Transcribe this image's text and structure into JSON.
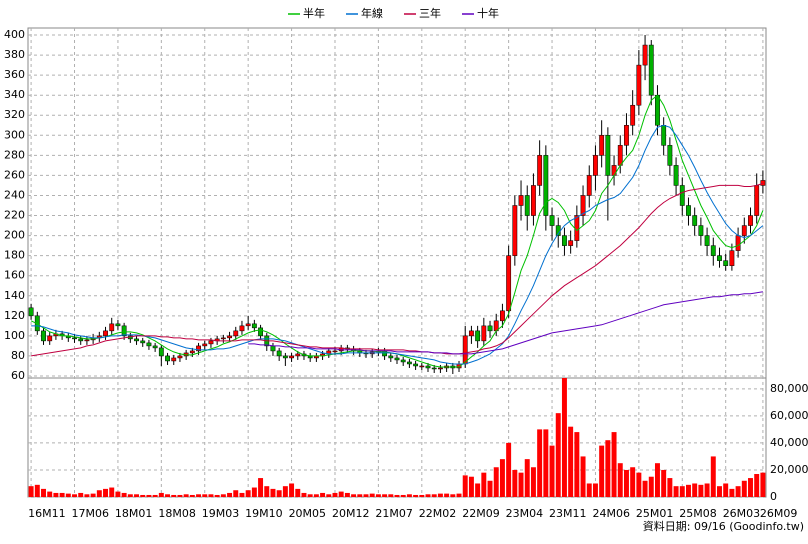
{
  "chart_data": [
    {
      "type": "candlestick",
      "legend": "top",
      "grid": true,
      "up_color": "#ff0000",
      "down_color": "#00b000",
      "source": "資料日期: 09/16 (Goodinfo.tw)",
      "categories": [
        "16M11",
        null,
        null,
        null,
        null,
        null,
        null,
        "17M06",
        null,
        null,
        null,
        null,
        null,
        null,
        "18M01",
        null,
        null,
        null,
        null,
        null,
        null,
        "18M08",
        null,
        null,
        null,
        null,
        null,
        null,
        "19M03",
        null,
        null,
        null,
        null,
        null,
        null,
        "19M10",
        null,
        null,
        null,
        null,
        null,
        null,
        "20M05",
        null,
        null,
        null,
        null,
        null,
        null,
        "20M12",
        null,
        null,
        null,
        null,
        null,
        null,
        "21M07",
        null,
        null,
        null,
        null,
        null,
        null,
        "22M02",
        null,
        null,
        null,
        null,
        null,
        null,
        "22M09",
        null,
        null,
        null,
        null,
        null,
        null,
        "23M04",
        null,
        null,
        null,
        null,
        null,
        null,
        "23M11",
        null,
        null,
        null,
        null,
        null,
        null,
        "24M06",
        null,
        null,
        null,
        null,
        null,
        null,
        "25M01",
        null,
        null,
        null,
        null,
        null,
        null,
        "25M08",
        null,
        null,
        null,
        null,
        null,
        null,
        "26M03",
        null,
        null,
        null,
        null,
        null,
        "26M09"
      ],
      "open": [
        128,
        120,
        105,
        95,
        100,
        102,
        100,
        98,
        97,
        95,
        96,
        98,
        100,
        105,
        112,
        110,
        100,
        97,
        95,
        93,
        90,
        88,
        80,
        75,
        78,
        80,
        83,
        85,
        90,
        92,
        95,
        97,
        98,
        100,
        105,
        110,
        112,
        108,
        100,
        90,
        85,
        80,
        78,
        80,
        82,
        80,
        78,
        80,
        82,
        85,
        85,
        88,
        87,
        85,
        83,
        82,
        84,
        85,
        80,
        78,
        76,
        74,
        72,
        70,
        70,
        68,
        67,
        68,
        70,
        68,
        72,
        100,
        105,
        95,
        110,
        105,
        115,
        125,
        180,
        230,
        240,
        220,
        250,
        280,
        220,
        210,
        200,
        190,
        195,
        220,
        240,
        260,
        280,
        300,
        260,
        270,
        290,
        310,
        330,
        370,
        390,
        340,
        310,
        290,
        270,
        250,
        230,
        220,
        210,
        200,
        190,
        180,
        175,
        170,
        185,
        200,
        210,
        220,
        250
      ],
      "high": [
        132,
        124,
        108,
        104,
        106,
        105,
        103,
        102,
        100,
        100,
        102,
        104,
        109,
        118,
        116,
        113,
        103,
        100,
        98,
        96,
        93,
        91,
        83,
        81,
        83,
        86,
        88,
        93,
        95,
        98,
        100,
        101,
        104,
        109,
        115,
        120,
        116,
        111,
        103,
        93,
        88,
        83,
        83,
        85,
        85,
        83,
        83,
        85,
        88,
        89,
        91,
        91,
        90,
        88,
        86,
        87,
        88,
        88,
        83,
        81,
        79,
        77,
        75,
        73,
        73,
        71,
        71,
        73,
        73,
        75,
        110,
        110,
        110,
        118,
        115,
        122,
        132,
        190,
        240,
        255,
        250,
        262,
        295,
        290,
        228,
        218,
        208,
        205,
        230,
        250,
        270,
        290,
        315,
        308,
        280,
        300,
        322,
        345,
        385,
        400,
        395,
        350,
        318,
        298,
        278,
        258,
        238,
        228,
        218,
        208,
        198,
        188,
        182,
        192,
        208,
        218,
        228,
        262,
        265
      ],
      "low": [
        116,
        101,
        91,
        91,
        96,
        96,
        94,
        93,
        91,
        91,
        92,
        94,
        96,
        101,
        106,
        96,
        93,
        91,
        89,
        86,
        84,
        70,
        71,
        71,
        74,
        76,
        79,
        81,
        86,
        88,
        91,
        93,
        94,
        96,
        101,
        106,
        104,
        96,
        85,
        80,
        75,
        70,
        74,
        76,
        76,
        74,
        74,
        76,
        78,
        81,
        81,
        83,
        81,
        79,
        78,
        78,
        80,
        76,
        74,
        72,
        70,
        68,
        66,
        66,
        64,
        63,
        63,
        64,
        62,
        64,
        68,
        92,
        88,
        90,
        98,
        100,
        108,
        118,
        170,
        215,
        205,
        210,
        240,
        205,
        195,
        188,
        180,
        182,
        188,
        210,
        228,
        245,
        268,
        215,
        250,
        262,
        280,
        300,
        320,
        355,
        330,
        300,
        280,
        260,
        240,
        220,
        210,
        200,
        190,
        180,
        170,
        168,
        165,
        165,
        178,
        192,
        202,
        212,
        242
      ],
      "close": [
        120,
        105,
        95,
        100,
        102,
        100,
        98,
        97,
        95,
        96,
        98,
        100,
        105,
        112,
        110,
        100,
        97,
        95,
        93,
        90,
        88,
        80,
        75,
        78,
        80,
        83,
        85,
        90,
        92,
        95,
        97,
        98,
        100,
        105,
        110,
        112,
        108,
        100,
        90,
        85,
        80,
        78,
        80,
        82,
        80,
        78,
        80,
        82,
        85,
        85,
        88,
        87,
        85,
        83,
        82,
        84,
        85,
        80,
        78,
        76,
        74,
        72,
        70,
        70,
        68,
        67,
        68,
        70,
        68,
        72,
        100,
        105,
        95,
        110,
        105,
        115,
        125,
        180,
        230,
        240,
        220,
        250,
        280,
        220,
        210,
        200,
        190,
        195,
        220,
        240,
        260,
        280,
        300,
        260,
        270,
        290,
        310,
        330,
        370,
        390,
        340,
        310,
        290,
        270,
        250,
        230,
        220,
        210,
        200,
        190,
        180,
        175,
        170,
        185,
        200,
        210,
        220,
        250,
        255
      ],
      "series": [
        {
          "name": "半年",
          "color": "#00c000",
          "values": [
            115,
            112,
            108,
            104,
            102,
            100,
            100,
            99,
            98,
            97,
            97,
            98,
            99,
            101,
            103,
            104,
            104,
            103,
            101,
            98,
            95,
            91,
            87,
            84,
            82,
            81,
            81,
            83,
            85,
            87,
            89,
            92,
            94,
            97,
            100,
            103,
            105,
            106,
            104,
            101,
            97,
            92,
            88,
            84,
            81,
            80,
            80,
            80,
            81,
            82,
            83,
            84,
            85,
            85,
            85,
            85,
            84,
            84,
            83,
            82,
            80,
            78,
            76,
            74,
            72,
            70,
            69,
            69,
            69,
            69,
            74,
            79,
            84,
            90,
            95,
            105,
            110,
            122,
            143,
            165,
            180,
            200,
            222,
            233,
            237,
            233,
            225,
            212,
            205,
            210,
            215,
            225,
            242,
            250,
            260,
            270,
            278,
            285,
            300,
            320,
            335,
            340,
            330,
            315,
            295,
            275,
            260,
            245,
            230,
            218,
            205,
            197,
            190,
            188,
            190,
            195,
            200,
            210,
            225
          ]
        },
        {
          "name": "年線",
          "color": "#0070d0",
          "values": [
            110,
            110,
            109,
            107,
            105,
            104,
            103,
            101,
            100,
            99,
            98,
            98,
            99,
            100,
            100,
            101,
            101,
            101,
            100,
            99,
            98,
            96,
            94,
            92,
            90,
            88,
            87,
            86,
            86,
            86,
            87,
            87,
            88,
            90,
            92,
            94,
            96,
            97,
            97,
            97,
            96,
            95,
            93,
            91,
            89,
            87,
            85,
            83,
            82,
            82,
            82,
            83,
            83,
            83,
            83,
            83,
            83,
            83,
            83,
            82,
            81,
            80,
            79,
            78,
            77,
            76,
            74,
            73,
            72,
            72,
            72,
            74,
            76,
            79,
            82,
            87,
            92,
            100,
            112,
            125,
            137,
            150,
            165,
            180,
            192,
            202,
            210,
            215,
            218,
            222,
            225,
            230,
            233,
            236,
            238,
            242,
            250,
            258,
            270,
            285,
            298,
            308,
            310,
            308,
            300,
            290,
            280,
            268,
            255,
            243,
            232,
            222,
            212,
            205,
            200,
            198,
            200,
            205,
            210
          ]
        },
        {
          "name": "三年",
          "color": "#c00040",
          "values": [
            80,
            81,
            82,
            83,
            84,
            85,
            86,
            87,
            88,
            90,
            91,
            93,
            95,
            96,
            97,
            98,
            99,
            100,
            100,
            100,
            100,
            99,
            99,
            98,
            98,
            97,
            97,
            96,
            96,
            96,
            95,
            95,
            95,
            95,
            96,
            96,
            96,
            96,
            95,
            95,
            94,
            93,
            92,
            91,
            90,
            89,
            89,
            88,
            88,
            88,
            88,
            87,
            87,
            87,
            87,
            87,
            86,
            86,
            86,
            86,
            86,
            85,
            85,
            84,
            84,
            83,
            83,
            82,
            82,
            82,
            83,
            84,
            85,
            87,
            88,
            90,
            93,
            98,
            104,
            110,
            116,
            122,
            128,
            134,
            140,
            145,
            150,
            154,
            158,
            162,
            166,
            170,
            175,
            180,
            185,
            190,
            196,
            202,
            208,
            215,
            222,
            228,
            233,
            237,
            240,
            243,
            245,
            246,
            247,
            248,
            249,
            250,
            250,
            250,
            250,
            249,
            249,
            250,
            252
          ]
        },
        {
          "name": "十年",
          "color": "#6000c0",
          "values": [
            null,
            null,
            null,
            null,
            null,
            null,
            null,
            null,
            null,
            null,
            null,
            null,
            null,
            null,
            null,
            null,
            null,
            null,
            null,
            null,
            null,
            null,
            null,
            null,
            null,
            null,
            null,
            null,
            null,
            null,
            null,
            null,
            null,
            null,
            null,
            92,
            92,
            91,
            91,
            90,
            90,
            89,
            89,
            88,
            88,
            88,
            87,
            87,
            87,
            87,
            86,
            86,
            86,
            86,
            85,
            85,
            85,
            85,
            85,
            84,
            84,
            84,
            84,
            84,
            84,
            83,
            83,
            83,
            82,
            82,
            82,
            82,
            83,
            84,
            85,
            86,
            87,
            89,
            91,
            93,
            95,
            97,
            99,
            101,
            103,
            104,
            105,
            106,
            107,
            108,
            109,
            110,
            111,
            113,
            115,
            117,
            119,
            121,
            123,
            125,
            127,
            129,
            131,
            132,
            133,
            134,
            135,
            136,
            137,
            138,
            139,
            139,
            140,
            141,
            141,
            142,
            142,
            143,
            144
          ]
        }
      ],
      "ylim": [
        58,
        407
      ],
      "yticks": [
        60,
        80,
        100,
        120,
        140,
        160,
        180,
        200,
        220,
        240,
        260,
        280,
        300,
        320,
        340,
        360,
        380,
        400
      ]
    },
    {
      "type": "bar",
      "color": "#ff0000",
      "values": [
        8000,
        9000,
        6000,
        4000,
        3000,
        3000,
        2500,
        2000,
        3000,
        2000,
        2500,
        5000,
        6000,
        7000,
        4000,
        3000,
        2000,
        2000,
        1500,
        1500,
        1500,
        3000,
        2000,
        1500,
        1500,
        2000,
        1500,
        2000,
        2000,
        2000,
        1500,
        2000,
        3000,
        5000,
        3000,
        5000,
        7000,
        14000,
        8000,
        6000,
        5000,
        8000,
        10000,
        6000,
        3000,
        2000,
        2000,
        3000,
        2000,
        3000,
        4000,
        3000,
        2000,
        2000,
        2000,
        2500,
        2000,
        2000,
        2000,
        1500,
        1500,
        2000,
        1500,
        1500,
        2000,
        2000,
        2500,
        2500,
        2000,
        2500,
        16000,
        15000,
        10000,
        18000,
        12000,
        22000,
        28000,
        40000,
        20000,
        18000,
        28000,
        22000,
        50000,
        50000,
        38000,
        62000,
        88000,
        52000,
        48000,
        30000,
        10000,
        10000,
        38000,
        42000,
        48000,
        25000,
        20000,
        22000,
        18000,
        12000,
        15000,
        25000,
        20000,
        14000,
        8000,
        8000,
        9000,
        10000,
        9000,
        10000,
        30000,
        8000,
        10000,
        6000,
        8000,
        12000,
        14000,
        17000,
        18000
      ],
      "ylim": [
        0,
        88000
      ],
      "yticks": [
        0,
        {
          "value": 20000,
          "label": "20,000"
        },
        {
          "value": 40000,
          "label": "40,000"
        },
        {
          "value": 60000,
          "label": "60,000"
        },
        {
          "value": 80000,
          "label": "80,000"
        }
      ]
    }
  ]
}
